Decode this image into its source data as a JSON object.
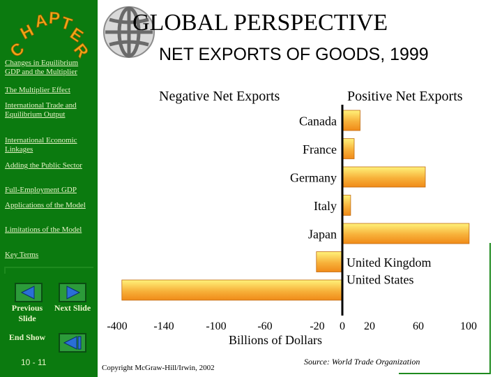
{
  "title": "GLOBAL  PERSPECTIVE",
  "subtitle": "NET EXPORTS OF GOODS, 1999",
  "chapter_logo": "CHAPTER",
  "sidebar": {
    "items": [
      {
        "label": "Changes in Equilibrium GDP and the Multiplier"
      },
      {
        "label": "The Multiplier Effect"
      },
      {
        "label": "International Trade and Equilibrium Output"
      },
      {
        "label": "International Economic Linkages"
      },
      {
        "label": "Adding the Public Sector"
      },
      {
        "label": "Full-Employment GDP"
      },
      {
        "label": "Applications of the Model"
      },
      {
        "label": "Limitations of the Model"
      },
      {
        "label": "Key Terms"
      }
    ],
    "previous_label": "Previous Slide",
    "next_label": "Next Slide",
    "end_label": "End Show",
    "page": "10 - 11"
  },
  "colors": {
    "sidebar": "#0b7a0f",
    "bar_light": "#fff27a",
    "bar_dark": "#f08a18"
  },
  "icons": [
    "globe-icon",
    "previous-arrow-icon",
    "next-arrow-icon",
    "end-show-icon"
  ],
  "copyright": "Copyright McGraw-Hill/Irwin,  2002",
  "source": "Source: World Trade Organization",
  "chart_data": {
    "type": "bar",
    "orientation": "horizontal",
    "title": "NET EXPORTS OF GOODS, 1999",
    "negative_label": "Negative Net Exports",
    "positive_label": "Positive Net Exports",
    "xlabel": "Billions of Dollars",
    "xtick_labels": [
      "-400",
      "-140",
      "-100",
      "-60",
      "-20",
      "0",
      "20",
      "60",
      "100"
    ],
    "categories": [
      "Canada",
      "France",
      "Germany",
      "Italy",
      "Japan",
      "United Kingdom",
      "United States"
    ],
    "values": [
      15,
      10,
      70,
      7,
      107,
      -40,
      -340
    ],
    "grid": false,
    "legend": "none"
  }
}
